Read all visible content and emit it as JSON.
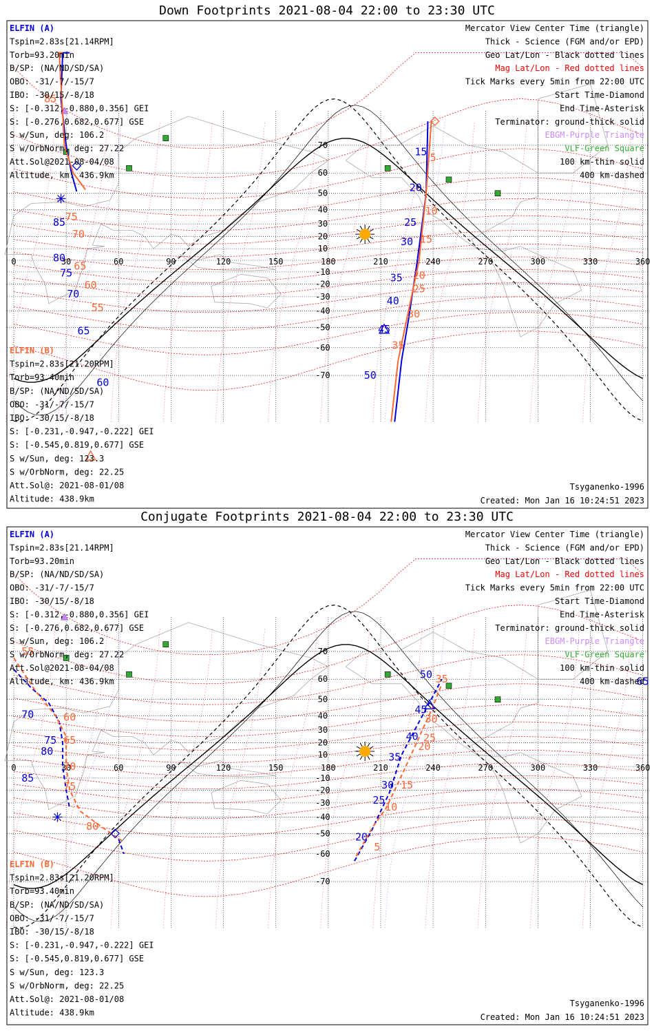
{
  "colors": {
    "elfin_a": "#0000dd",
    "elfin_b": "#ff6633",
    "geo": "#000000",
    "mag": "#ee0000",
    "bbgm": "#cc88ff",
    "vlf": "#33aa33",
    "land": "#aaaaaa"
  },
  "lon_labels": [
    "0",
    "30",
    "60",
    "90",
    "120",
    "150",
    "180",
    "210",
    "240",
    "270",
    "300",
    "330",
    "360"
  ],
  "lat_labels": [
    "70",
    "60",
    "50",
    "40",
    "30",
    "20",
    "10",
    "-10",
    "-20",
    "-30",
    "-40",
    "-50",
    "-60",
    "-70"
  ],
  "panels": [
    {
      "id": "down",
      "title": "Down Footprints 2021-08-04 22:00 to 23:30 UTC",
      "info_a": [
        "ELFIN (A)",
        "Tspin=2.83s[21.14RPM]",
        "Torb=93.20min",
        "B/SP: (NA/ND/SD/SA)",
        "OBO: -31/-7/-15/7",
        "IBO: -30/15/-8/18",
        "S: [-0.312,-0.880,0.356] GEI",
        "S: [-0.276,0.682,0.677] GSE",
        "S w/Sun, deg: 106.2",
        "S w/OrbNorm, deg: 27.22",
        "Att.Sol@2021-08-04/08",
        "Altitude, km: 436.9km"
      ],
      "info_b": [
        "ELFIN (B)",
        "Tspin=2.83s[21.20RPM]",
        "Torb=93.40min",
        "B/SP: (NA/ND/SD/SA)",
        "OBO: -31/-7/-15/7",
        "IBO: -30/15/-8/18",
        "S: [-0.231,-0.947,-0.222] GEI",
        "S: [-0.545,0.819,0.677] GSE",
        "S w/Sun, deg: 123.3",
        "S w/OrbNorm, deg: 22.25",
        "Att.Sol@: 2021-08-01/08",
        "Altitude: 438.9km"
      ],
      "legend": [
        {
          "text": "Mercator View Center Time (triangle)",
          "color": "#000000"
        },
        {
          "text": "Thick - Science (FGM and/or EPD)",
          "color": "#000000"
        },
        {
          "text": "Geo Lat/Lon - Black dotted lines",
          "color": "#000000"
        },
        {
          "text": "Mag Lat/Lon - Red dotted lines",
          "color": "#ee0000"
        },
        {
          "text": "Tick Marks every 5min from 22:00 UTC",
          "color": "#000000"
        },
        {
          "text": "Start Time-Diamond",
          "color": "#000000"
        },
        {
          "text": "End Time-Asterisk",
          "color": "#000000"
        },
        {
          "text": "Terminator: ground-thick solid",
          "color": "#000000"
        },
        {
          "text": "EBGM-Purple Triangle",
          "color": "#cc88ff"
        },
        {
          "text": "VLF-Green Square",
          "color": "#33aa33"
        },
        {
          "text": "100 km-thin solid",
          "color": "#000000"
        },
        {
          "text": "400 km-dashed",
          "color": "#000000"
        }
      ],
      "model": "Tsyganenko-1996",
      "created": "Created: Mon Jan 16 10:24:51 2023",
      "tracks": [
        {
          "satellite": "A",
          "segments": [
            [
              [
                32,
                95
              ],
              [
                28,
                90
              ],
              [
                27,
                80
              ],
              [
                30,
                70
              ],
              [
                33,
                60
              ],
              [
                36,
                51
              ]
            ],
            [
              [
                237,
                76
              ],
              [
                236,
                50
              ],
              [
                231,
                0
              ],
              [
                226,
                -45
              ],
              [
                222,
                -65
              ],
              [
                218,
                -80
              ]
            ]
          ],
          "ticks": [
            {
              "t": "15",
              "lon": 233,
              "lat": 68
            },
            {
              "t": "20",
              "lon": 230,
              "lat": 53
            },
            {
              "t": "25",
              "lon": 227,
              "lat": 31
            },
            {
              "t": "30",
              "lon": 225,
              "lat": 16
            },
            {
              "t": "35",
              "lon": 219,
              "lat": -15
            },
            {
              "t": "40",
              "lon": 217,
              "lat": -33
            },
            {
              "t": "45",
              "lon": 212,
              "lat": -51
            },
            {
              "t": "50",
              "lon": 204,
              "lat": -70
            },
            {
              "t": "85",
              "lon": 26,
              "lat": 31
            },
            {
              "t": "80",
              "lon": 26,
              "lat": 2
            },
            {
              "t": "75",
              "lon": 30,
              "lat": -11
            },
            {
              "t": "70",
              "lon": 34,
              "lat": -28
            },
            {
              "t": "65",
              "lon": 40,
              "lat": -52
            },
            {
              "t": "60",
              "lon": 51,
              "lat": -72
            }
          ]
        },
        {
          "satellite": "B",
          "segments": [
            [
              [
                28,
                95
              ],
              [
                26,
                85
              ],
              [
                29,
                70
              ],
              [
                34,
                60
              ],
              [
                41,
                52
              ]
            ],
            [
              [
                239,
                76
              ],
              [
                236,
                50
              ],
              [
                232,
                0
              ],
              [
                225,
                -45
              ],
              [
                220,
                -65
              ],
              [
                216,
                -80
              ]
            ]
          ],
          "ticks": [
            {
              "t": "5",
              "lon": 240,
              "lat": 66
            },
            {
              "t": "10",
              "lon": 239,
              "lat": 39
            },
            {
              "t": "15",
              "lon": 236,
              "lat": 18
            },
            {
              "t": "20",
              "lon": 232,
              "lat": -13
            },
            {
              "t": "25",
              "lon": 232,
              "lat": -24
            },
            {
              "t": "30",
              "lon": 229,
              "lat": -42
            },
            {
              "t": "35",
              "lon": 220,
              "lat": -59
            },
            {
              "t": "85",
              "lon": 21,
              "lat": 80
            },
            {
              "t": "75",
              "lon": 33,
              "lat": 35
            },
            {
              "t": "70",
              "lon": 37,
              "lat": 22
            },
            {
              "t": "65",
              "lon": 38,
              "lat": -5
            },
            {
              "t": "60",
              "lon": 44,
              "lat": -21
            },
            {
              "t": "55",
              "lon": 48,
              "lat": -38
            }
          ]
        }
      ],
      "markers": [
        {
          "type": "diamond",
          "sat": "A",
          "lon": 36,
          "lat": 63
        },
        {
          "type": "diamond",
          "sat": "B",
          "lon": 241,
          "lat": 76
        },
        {
          "type": "asterisk",
          "sat": "A",
          "lon": 27,
          "lat": 47
        },
        {
          "type": "triangle",
          "sat": "A",
          "lon": 212,
          "lat": -51
        },
        {
          "type": "triangle_b",
          "sat": "B",
          "lon": 44,
          "lat": -84
        }
      ],
      "sun": {
        "lon": 201,
        "lat": 22
      },
      "ebgm": [
        {
          "lon": 29,
          "lat": 78
        }
      ],
      "vlf": [
        {
          "lon": 87,
          "lat": 72
        },
        {
          "lon": 30,
          "lat": 68
        },
        {
          "lon": 66,
          "lat": 62
        },
        {
          "lon": 214,
          "lat": 62
        },
        {
          "lon": 249,
          "lat": 57
        },
        {
          "lon": 277,
          "lat": 50
        }
      ]
    },
    {
      "id": "conjugate",
      "title": "Conjugate Footprints 2021-08-04 22:00 to 23:30 UTC",
      "info_a": [
        "ELFIN (A)",
        "Tspin=2.83s[21.14RPM]",
        "Torb=93.20min",
        "B/SP: (NA/ND/SD/SA)",
        "OBO: -31/-7/-15/7",
        "IBO: -30/15/-8/18",
        "S: [-0.312,-0.880,0.356] GEI",
        "S: [-0.276,0.682,0.677] GSE",
        "S w/Sun, deg: 106.2",
        "S w/OrbNorm, deg: 27.22",
        "Att.Sol@2021-08-04/08",
        "Altitude, km: 436.9km"
      ],
      "info_b": [
        "ELFIN (B)",
        "Tspin=2.83s[21.20RPM]",
        "Torb=93.40min",
        "B/SP: (NA/ND/SD/SA)",
        "OBO: -31/-7/-15/7",
        "IBO: -30/15/-8/18",
        "S: [-0.231,-0.947,-0.222] GEI",
        "S: [-0.545,0.819,0.677] GSE",
        "S w/Sun, deg: 123.3",
        "S w/OrbNorm, deg: 22.25",
        "Att.Sol@: 2021-08-01/08",
        "Altitude: 438.9km"
      ],
      "legend": [
        {
          "text": "Mercator View Center Time (triangle)",
          "color": "#000000"
        },
        {
          "text": "Thick - Science (FGM and/or EPD)",
          "color": "#000000"
        },
        {
          "text": "Geo Lat/Lon - Black dotted lines",
          "color": "#000000"
        },
        {
          "text": "Mag Lat/Lon - Red dotted lines",
          "color": "#ee0000"
        },
        {
          "text": "Tick Marks every 5min from 22:00 UTC",
          "color": "#000000"
        },
        {
          "text": "Start Time-Diamond",
          "color": "#000000"
        },
        {
          "text": "End Time-Asterisk",
          "color": "#000000"
        },
        {
          "text": "Terminator: ground-thick solid",
          "color": "#000000"
        },
        {
          "text": "EBGM-Purple Triangle",
          "color": "#cc88ff"
        },
        {
          "text": "VLF-Green Square",
          "color": "#33aa33"
        },
        {
          "text": "100 km-thin solid",
          "color": "#000000"
        },
        {
          "text": "400 km-dashed",
          "color": "#000000"
        }
      ],
      "model": "Tsyganenko-1996",
      "created": "Created: Mon Jan 16 10:24:51 2023",
      "tracks": [
        {
          "satellite": "A",
          "segments": [
            [
              [
                0,
                64
              ],
              [
                10,
                56
              ],
              [
                20,
                48
              ],
              [
                26,
                36
              ],
              [
                28,
                20
              ],
              [
                28,
                0
              ],
              [
                30,
                -20
              ],
              [
                32,
                -34
              ]
            ],
            [
              [
                195,
                -63
              ],
              [
                205,
                -48
              ],
              [
                215,
                -22
              ],
              [
                222,
                10
              ],
              [
                232,
                36
              ],
              [
                240,
                52
              ],
              [
                245,
                60
              ]
            ],
            [
              [
                60,
                -53
              ],
              [
                63,
                -60
              ]
            ]
          ],
          "ticks": [
            {
              "t": "50",
              "lon": 236,
              "lat": 62
            },
            {
              "t": "45",
              "lon": 233,
              "lat": 44
            },
            {
              "t": "40",
              "lon": 228,
              "lat": 25
            },
            {
              "t": "35",
              "lon": 218,
              "lat": 8
            },
            {
              "t": "30",
              "lon": 214,
              "lat": -16
            },
            {
              "t": "25",
              "lon": 209,
              "lat": -28
            },
            {
              "t": "20",
              "lon": 199,
              "lat": -52
            },
            {
              "t": "65",
              "lon": 360,
              "lat": 59
            },
            {
              "t": "70",
              "lon": 8,
              "lat": 41
            },
            {
              "t": "75",
              "lon": 21,
              "lat": 22
            },
            {
              "t": "80",
              "lon": 19,
              "lat": 13
            },
            {
              "t": "85",
              "lon": 8,
              "lat": -10
            }
          ]
        },
        {
          "satellite": "B",
          "segments": [
            [
              [
                0,
                68
              ],
              [
                12,
                55
              ],
              [
                24,
                40
              ],
              [
                30,
                25
              ],
              [
                30,
                0
              ],
              [
                32,
                -20
              ],
              [
                38,
                -36
              ],
              [
                50,
                -46
              ],
              [
                62,
                -54
              ]
            ],
            [
              [
                196,
                -61
              ],
              [
                205,
                -47
              ],
              [
                213,
                -34
              ],
              [
                220,
                -14
              ],
              [
                228,
                12
              ],
              [
                240,
                46
              ],
              [
                245,
                58
              ]
            ]
          ],
          "ticks": [
            {
              "t": "35",
              "lon": 245,
              "lat": 60
            },
            {
              "t": "30",
              "lon": 239,
              "lat": 38
            },
            {
              "t": "25",
              "lon": 238,
              "lat": 24
            },
            {
              "t": "20",
              "lon": 235,
              "lat": 17
            },
            {
              "t": "15",
              "lon": 225,
              "lat": -16
            },
            {
              "t": "10",
              "lon": 216,
              "lat": -33
            },
            {
              "t": "5",
              "lon": 208,
              "lat": -57
            },
            {
              "t": "55",
              "lon": 8,
              "lat": 70
            },
            {
              "t": "60",
              "lon": 32,
              "lat": 39
            },
            {
              "t": "65",
              "lon": 32,
              "lat": 22
            },
            {
              "t": "70",
              "lon": 32,
              "lat": 0
            },
            {
              "t": "75",
              "lon": 32,
              "lat": -17
            },
            {
              "t": "80",
              "lon": 45,
              "lat": -46
            }
          ]
        }
      ],
      "markers": [
        {
          "type": "triangle",
          "sat": "A",
          "lon": 238,
          "lat": 47
        },
        {
          "type": "diamond",
          "sat": "A",
          "lon": 58,
          "lat": -50
        },
        {
          "type": "asterisk",
          "sat": "A",
          "lon": 25,
          "lat": -40
        }
      ],
      "sun": {
        "lon": 201,
        "lat": 13
      },
      "ebgm": [
        {
          "lon": 29,
          "lat": 78
        }
      ],
      "vlf": [
        {
          "lon": 87,
          "lat": 72
        },
        {
          "lon": 30,
          "lat": 68
        },
        {
          "lon": 66,
          "lat": 62
        },
        {
          "lon": 214,
          "lat": 62
        },
        {
          "lon": 249,
          "lat": 57
        },
        {
          "lon": 277,
          "lat": 50
        }
      ]
    }
  ]
}
